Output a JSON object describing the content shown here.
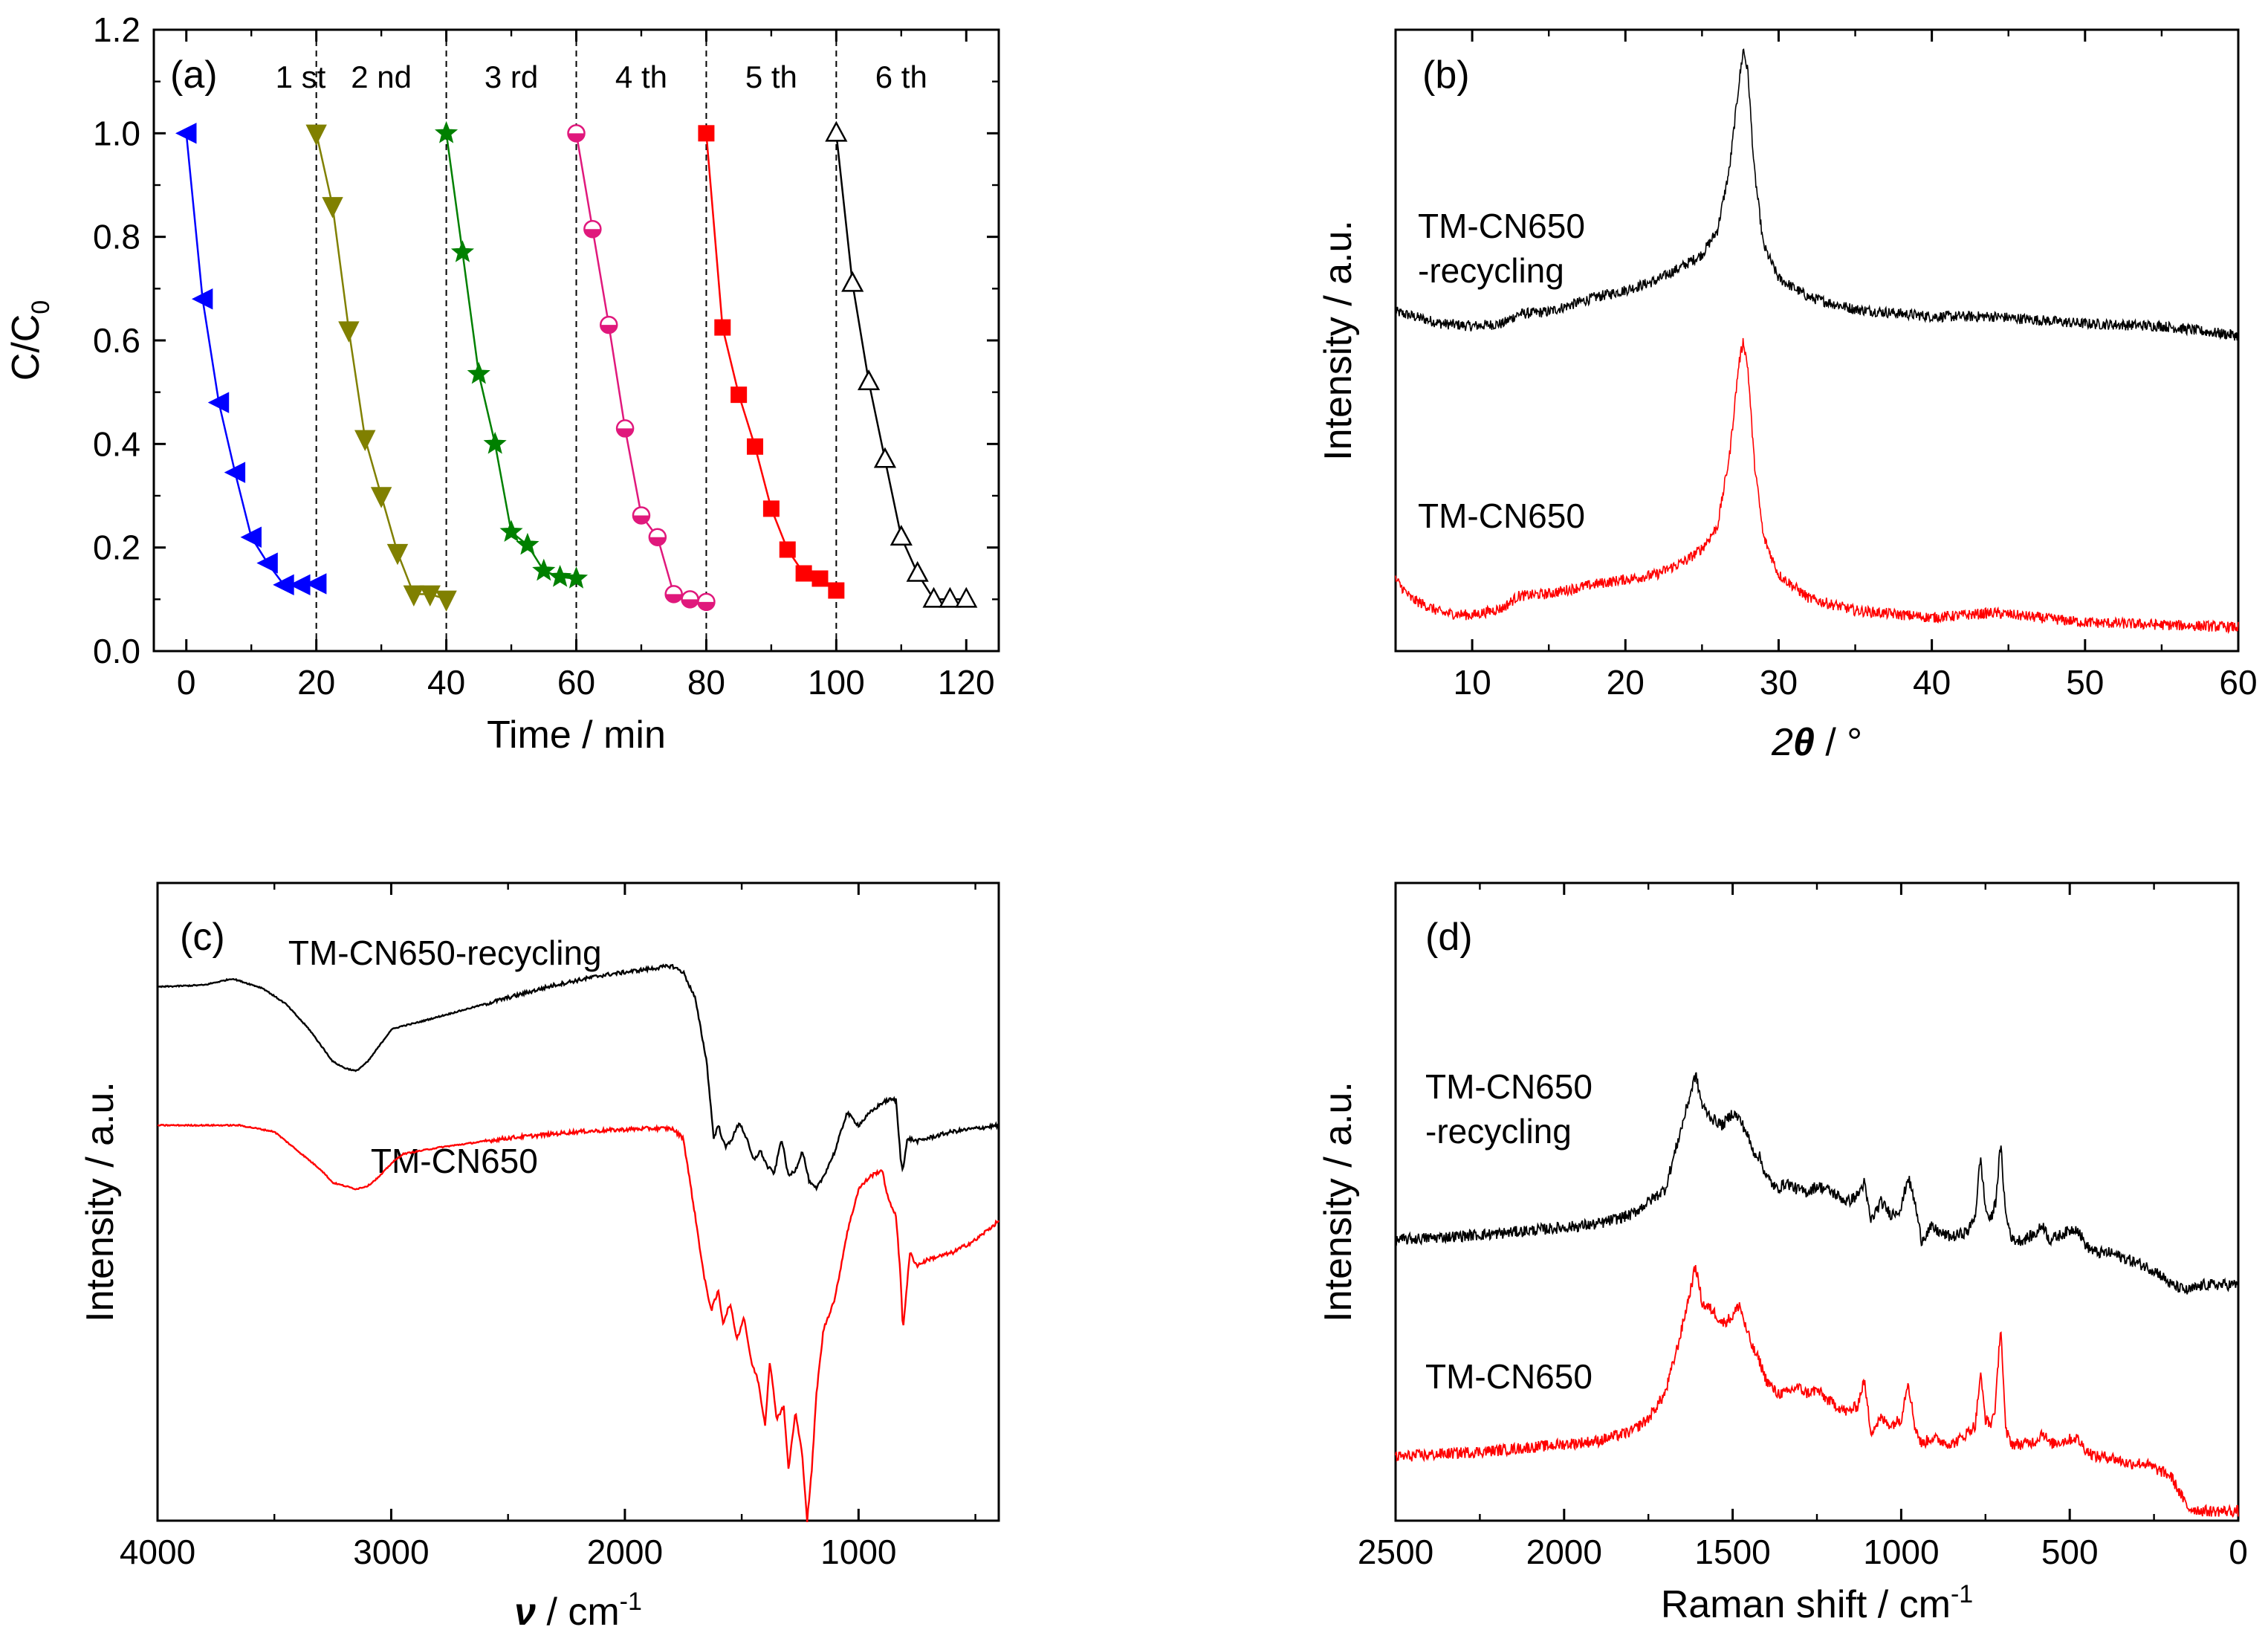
{
  "figure": {
    "colors": {
      "black": "#000000",
      "red": "#ff0000",
      "blue": "#0000ff",
      "olive": "#808000",
      "green": "#008000",
      "magenta": "#e0187c"
    }
  },
  "chart_data": [
    {
      "id": "a",
      "type": "line",
      "panel_label": "(a)",
      "xlabel": "Time / min",
      "ylabel_main": "C/C",
      "ylabel_sub": "0",
      "xlim": [
        -5,
        125
      ],
      "ylim": [
        0,
        1.2
      ],
      "xticks": [
        0,
        20,
        40,
        60,
        80,
        100,
        120
      ],
      "xtick_labels": [
        "0",
        "20",
        "40",
        "60",
        "80",
        "100",
        "120"
      ],
      "yticks": [
        0,
        0.2,
        0.4,
        0.6,
        0.8,
        1.0,
        1.2
      ],
      "ytick_labels": [
        "0.0",
        "0.2",
        "0.4",
        "0.6",
        "0.8",
        "1.0",
        "1.2"
      ],
      "dividers": [
        20,
        40,
        60,
        80,
        100
      ],
      "cycle_labels": [
        "1 st",
        "2 nd",
        "3 rd",
        "4 th",
        "5 th",
        "6 th"
      ],
      "series": [
        {
          "name": "1 st",
          "color": "#0000ff",
          "marker": "triangle-left",
          "x": [
            0,
            2.5,
            5,
            7.5,
            10,
            12.5,
            15,
            17.5,
            20
          ],
          "y": [
            1.0,
            0.68,
            0.48,
            0.345,
            0.22,
            0.17,
            0.128,
            0.128,
            0.13
          ]
        },
        {
          "name": "2 nd",
          "color": "#808000",
          "marker": "triangle-down",
          "x": [
            20,
            22.5,
            25,
            27.5,
            30,
            32.5,
            35,
            37.5,
            40
          ],
          "y": [
            1.0,
            0.86,
            0.62,
            0.41,
            0.3,
            0.19,
            0.11,
            0.11,
            0.1
          ]
        },
        {
          "name": "3 rd",
          "color": "#008000",
          "marker": "star",
          "x": [
            40,
            42.5,
            45,
            47.5,
            50,
            52.5,
            55,
            57.5,
            60
          ],
          "y": [
            1.0,
            0.77,
            0.535,
            0.4,
            0.23,
            0.205,
            0.155,
            0.143,
            0.14
          ]
        },
        {
          "name": "4 th",
          "color": "#e0187c",
          "marker": "half-circle",
          "x": [
            60,
            62.5,
            65,
            67.5,
            70,
            72.5,
            75,
            77.5,
            80
          ],
          "y": [
            1.0,
            0.815,
            0.63,
            0.43,
            0.262,
            0.22,
            0.11,
            0.1,
            0.095
          ]
        },
        {
          "name": "5 th",
          "color": "#ff0000",
          "marker": "square",
          "x": [
            80,
            82.5,
            85,
            87.5,
            90,
            92.5,
            95,
            97.5,
            100
          ],
          "y": [
            1.0,
            0.625,
            0.495,
            0.395,
            0.275,
            0.196,
            0.15,
            0.14,
            0.117
          ]
        },
        {
          "name": "6 th",
          "color": "#000000",
          "marker": "triangle-open",
          "x": [
            100,
            102.5,
            105,
            107.5,
            110,
            112.5,
            115,
            117.5,
            120
          ],
          "y": [
            1.0,
            0.71,
            0.52,
            0.37,
            0.22,
            0.15,
            0.1,
            0.1,
            0.1
          ]
        }
      ]
    },
    {
      "id": "b",
      "type": "line",
      "panel_label": "(b)",
      "xlabel_main": "2",
      "xlabel_theta": "θ",
      "xlabel_unit": " / °",
      "ylabel": "Intensity / a.u.",
      "xlim": [
        5,
        60
      ],
      "xticks": [
        10,
        20,
        30,
        40,
        50,
        60
      ],
      "xtick_labels": [
        "10",
        "20",
        "30",
        "40",
        "50",
        "60"
      ],
      "ylim": [
        0,
        2.6
      ],
      "annotations": [
        "TM-CN650",
        "-recycling",
        "TM-CN650"
      ],
      "series": [
        {
          "name": "TM-CN650-recycling",
          "color": "#000000",
          "offset": 1.32,
          "x": [
            5,
            8,
            10,
            12,
            13,
            15,
            18,
            20,
            22,
            24,
            25,
            26,
            26.8,
            27.4,
            27.7,
            28.0,
            28.4,
            29,
            30,
            32,
            35,
            40,
            44,
            50,
            55,
            60
          ],
          "y": [
            0.1,
            0.05,
            0.04,
            0.05,
            0.09,
            0.1,
            0.16,
            0.19,
            0.23,
            0.3,
            0.34,
            0.44,
            0.7,
            1.05,
            1.2,
            1.1,
            0.7,
            0.38,
            0.24,
            0.16,
            0.11,
            0.08,
            0.08,
            0.05,
            0.04,
            0.0
          ]
        },
        {
          "name": "TM-CN650",
          "color": "#ff0000",
          "offset": 0.1,
          "x": [
            5,
            6,
            8,
            10,
            12,
            13,
            15,
            18,
            20,
            22,
            24,
            25,
            26,
            26.8,
            27.4,
            27.7,
            28.0,
            28.4,
            29,
            30,
            32,
            35,
            40,
            44,
            50,
            55,
            60
          ],
          "y": [
            0.2,
            0.12,
            0.06,
            0.05,
            0.08,
            0.13,
            0.14,
            0.18,
            0.2,
            0.22,
            0.28,
            0.33,
            0.42,
            0.72,
            1.1,
            1.2,
            1.08,
            0.7,
            0.38,
            0.22,
            0.12,
            0.07,
            0.04,
            0.06,
            0.02,
            0.01,
            0.0
          ]
        }
      ]
    },
    {
      "id": "c",
      "type": "line",
      "panel_label": "(c)",
      "xlabel_nu": "ν",
      "xlabel_unit": " / cm",
      "xlabel_exp": "-1",
      "ylabel": "Intensity / a.u.",
      "xlim": [
        4000,
        400
      ],
      "xticks": [
        4000,
        3000,
        2000,
        1000
      ],
      "xtick_labels": [
        "4000",
        "3000",
        "2000",
        "1000"
      ],
      "ylim": [
        0,
        1.0
      ],
      "annotations": [
        "TM-CN650-recycling",
        "TM-CN650"
      ],
      "series": [
        {
          "name": "TM-CN650-recycling",
          "color": "#000000",
          "x": [
            4000,
            3800,
            3680,
            3550,
            3450,
            3350,
            3300,
            3250,
            3200,
            3150,
            3100,
            3050,
            3000,
            2960,
            2900,
            2700,
            2500,
            2300,
            2100,
            1900,
            1800,
            1750,
            1700,
            1650,
            1620,
            1600,
            1570,
            1540,
            1510,
            1480,
            1450,
            1420,
            1390,
            1360,
            1330,
            1300,
            1270,
            1240,
            1210,
            1180,
            1150,
            1100,
            1050,
            1000,
            950,
            900,
            870,
            840,
            820,
            810,
            790,
            750,
            700,
            600,
            500,
            400
          ],
          "y": [
            0.837,
            0.84,
            0.85,
            0.835,
            0.81,
            0.77,
            0.745,
            0.72,
            0.71,
            0.705,
            0.72,
            0.745,
            0.77,
            0.775,
            0.78,
            0.8,
            0.82,
            0.84,
            0.855,
            0.865,
            0.87,
            0.86,
            0.82,
            0.72,
            0.6,
            0.62,
            0.585,
            0.6,
            0.625,
            0.6,
            0.565,
            0.58,
            0.555,
            0.545,
            0.6,
            0.54,
            0.55,
            0.58,
            0.53,
            0.52,
            0.54,
            0.58,
            0.64,
            0.62,
            0.64,
            0.655,
            0.66,
            0.66,
            0.57,
            0.55,
            0.6,
            0.595,
            0.6,
            0.61,
            0.615,
            0.62
          ]
        },
        {
          "name": "TM-CN650",
          "color": "#ff0000",
          "x": [
            4000,
            3800,
            3650,
            3500,
            3400,
            3300,
            3250,
            3200,
            3150,
            3100,
            3050,
            3000,
            2950,
            2800,
            2500,
            2200,
            1900,
            1800,
            1750,
            1700,
            1660,
            1630,
            1600,
            1580,
            1550,
            1520,
            1490,
            1460,
            1430,
            1400,
            1380,
            1350,
            1320,
            1300,
            1270,
            1240,
            1220,
            1200,
            1180,
            1150,
            1100,
            1050,
            1000,
            950,
            900,
            870,
            840,
            820,
            810,
            780,
            750,
            700,
            600,
            500,
            400
          ],
          "y": [
            0.62,
            0.62,
            0.62,
            0.61,
            0.58,
            0.55,
            0.53,
            0.525,
            0.52,
            0.525,
            0.54,
            0.56,
            0.575,
            0.585,
            0.6,
            0.61,
            0.615,
            0.615,
            0.6,
            0.48,
            0.38,
            0.33,
            0.36,
            0.31,
            0.34,
            0.285,
            0.32,
            0.25,
            0.22,
            0.15,
            0.25,
            0.16,
            0.18,
            0.08,
            0.17,
            0.1,
            0.0,
            0.08,
            0.2,
            0.3,
            0.35,
            0.45,
            0.52,
            0.54,
            0.55,
            0.5,
            0.48,
            0.38,
            0.3,
            0.42,
            0.4,
            0.41,
            0.42,
            0.44,
            0.47
          ]
        }
      ]
    },
    {
      "id": "d",
      "type": "line",
      "panel_label": "(d)",
      "xlabel_main": "Raman shift / cm",
      "xlabel_exp": "-1",
      "ylabel": "Intensity / a.u.",
      "xlim": [
        2500,
        0
      ],
      "xticks": [
        2500,
        2000,
        1500,
        1000,
        500,
        0
      ],
      "xtick_labels": [
        "2500",
        "2000",
        "1500",
        "1000",
        "500",
        "0"
      ],
      "ylim": [
        0,
        1.0
      ],
      "annotations": [
        "TM-CN650",
        "-recycling",
        "TM-CN650"
      ],
      "series": [
        {
          "name": "TM-CN650-recycling",
          "color": "#000000",
          "x": [
            2500,
            2200,
            2000,
            1900,
            1800,
            1750,
            1700,
            1660,
            1630,
            1610,
            1590,
            1560,
            1530,
            1500,
            1480,
            1460,
            1440,
            1420,
            1400,
            1370,
            1340,
            1310,
            1280,
            1250,
            1220,
            1190,
            1160,
            1130,
            1110,
            1090,
            1060,
            1030,
            1000,
            980,
            960,
            940,
            910,
            880,
            850,
            820,
            800,
            780,
            765,
            750,
            735,
            720,
            705,
            690,
            670,
            640,
            600,
            580,
            560,
            520,
            480,
            450,
            420,
            380,
            330,
            280,
            240,
            200,
            150,
            100,
            50,
            0
          ],
          "y": [
            0.44,
            0.45,
            0.46,
            0.465,
            0.48,
            0.5,
            0.52,
            0.6,
            0.66,
            0.7,
            0.65,
            0.63,
            0.62,
            0.64,
            0.63,
            0.61,
            0.58,
            0.57,
            0.54,
            0.52,
            0.53,
            0.52,
            0.515,
            0.525,
            0.52,
            0.51,
            0.5,
            0.51,
            0.53,
            0.47,
            0.5,
            0.48,
            0.49,
            0.54,
            0.5,
            0.44,
            0.46,
            0.45,
            0.445,
            0.45,
            0.455,
            0.48,
            0.57,
            0.49,
            0.47,
            0.5,
            0.59,
            0.48,
            0.44,
            0.44,
            0.45,
            0.465,
            0.44,
            0.45,
            0.46,
            0.43,
            0.42,
            0.42,
            0.41,
            0.4,
            0.39,
            0.37,
            0.36,
            0.37,
            0.37,
            0.37
          ]
        },
        {
          "name": "TM-CN650",
          "color": "#ff0000",
          "x": [
            2500,
            2200,
            2000,
            1900,
            1800,
            1750,
            1700,
            1660,
            1630,
            1610,
            1590,
            1560,
            1530,
            1500,
            1480,
            1460,
            1440,
            1420,
            1400,
            1370,
            1340,
            1310,
            1280,
            1250,
            1220,
            1190,
            1160,
            1130,
            1110,
            1090,
            1060,
            1030,
            1000,
            980,
            960,
            940,
            910,
            880,
            850,
            820,
            800,
            780,
            765,
            750,
            735,
            720,
            705,
            690,
            670,
            640,
            600,
            580,
            560,
            520,
            480,
            450,
            420,
            380,
            330,
            280,
            240,
            200,
            150,
            100,
            50,
            0
          ],
          "y": [
            0.1,
            0.11,
            0.12,
            0.125,
            0.14,
            0.16,
            0.2,
            0.28,
            0.35,
            0.4,
            0.34,
            0.33,
            0.31,
            0.32,
            0.34,
            0.3,
            0.27,
            0.25,
            0.22,
            0.2,
            0.2,
            0.21,
            0.2,
            0.205,
            0.19,
            0.18,
            0.17,
            0.18,
            0.22,
            0.14,
            0.16,
            0.15,
            0.16,
            0.22,
            0.15,
            0.12,
            0.13,
            0.125,
            0.12,
            0.13,
            0.14,
            0.15,
            0.23,
            0.16,
            0.15,
            0.18,
            0.31,
            0.14,
            0.12,
            0.12,
            0.125,
            0.14,
            0.12,
            0.125,
            0.13,
            0.11,
            0.1,
            0.1,
            0.09,
            0.09,
            0.08,
            0.07,
            0.02,
            0.015,
            0.015,
            0.015
          ]
        }
      ]
    }
  ]
}
